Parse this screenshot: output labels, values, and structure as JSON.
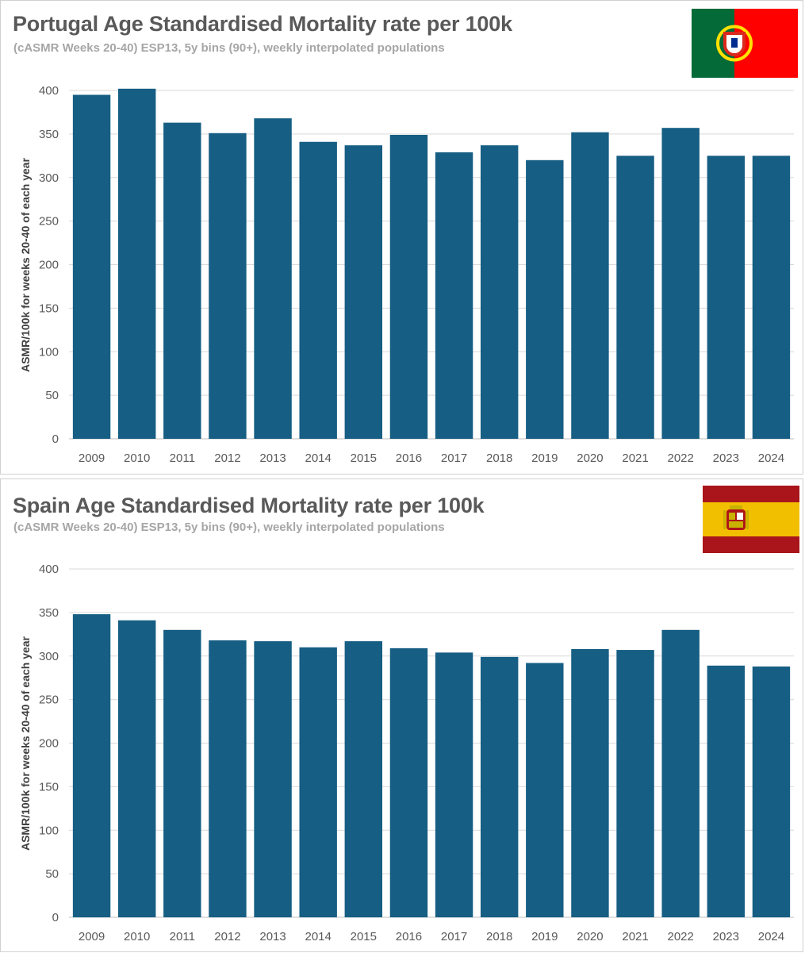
{
  "colors": {
    "bar": "#165e83",
    "grid": "#d9d9d9",
    "title": "#595959",
    "subtitle": "#a6a6a6"
  },
  "chart_data": [
    {
      "type": "bar",
      "title": "Portugal Age Standardised Mortality rate per 100k",
      "subtitle": "(cASMR Weeks 20-40) ESP13, 5y bins (90+), weekly interpolated populations",
      "xlabel": "",
      "ylabel": "ASMR/100k for weeks 20-40 of each year",
      "ylim": [
        0,
        400
      ],
      "yticks": [
        0,
        50,
        100,
        150,
        200,
        250,
        300,
        350,
        400
      ],
      "categories": [
        "2009",
        "2010",
        "2011",
        "2012",
        "2013",
        "2014",
        "2015",
        "2016",
        "2017",
        "2018",
        "2019",
        "2020",
        "2021",
        "2022",
        "2023",
        "2024"
      ],
      "values": [
        395,
        402,
        363,
        351,
        368,
        341,
        337,
        349,
        329,
        337,
        320,
        352,
        325,
        357,
        325,
        325
      ],
      "flag": "portugal-flag",
      "grid": true
    },
    {
      "type": "bar",
      "title": "Spain Age Standardised Mortality rate per 100k",
      "subtitle": "(cASMR Weeks 20-40) ESP13, 5y bins (90+), weekly interpolated populations",
      "xlabel": "",
      "ylabel": "ASMR/100k for weeks 20-40 of each year",
      "ylim": [
        0,
        400
      ],
      "yticks": [
        0,
        50,
        100,
        150,
        200,
        250,
        300,
        350,
        400
      ],
      "categories": [
        "2009",
        "2010",
        "2011",
        "2012",
        "2013",
        "2014",
        "2015",
        "2016",
        "2017",
        "2018",
        "2019",
        "2020",
        "2021",
        "2022",
        "2023",
        "2024"
      ],
      "values": [
        348,
        341,
        330,
        318,
        317,
        310,
        317,
        309,
        304,
        299,
        292,
        308,
        307,
        330,
        289,
        288
      ],
      "flag": "spain-flag",
      "grid": true
    }
  ]
}
